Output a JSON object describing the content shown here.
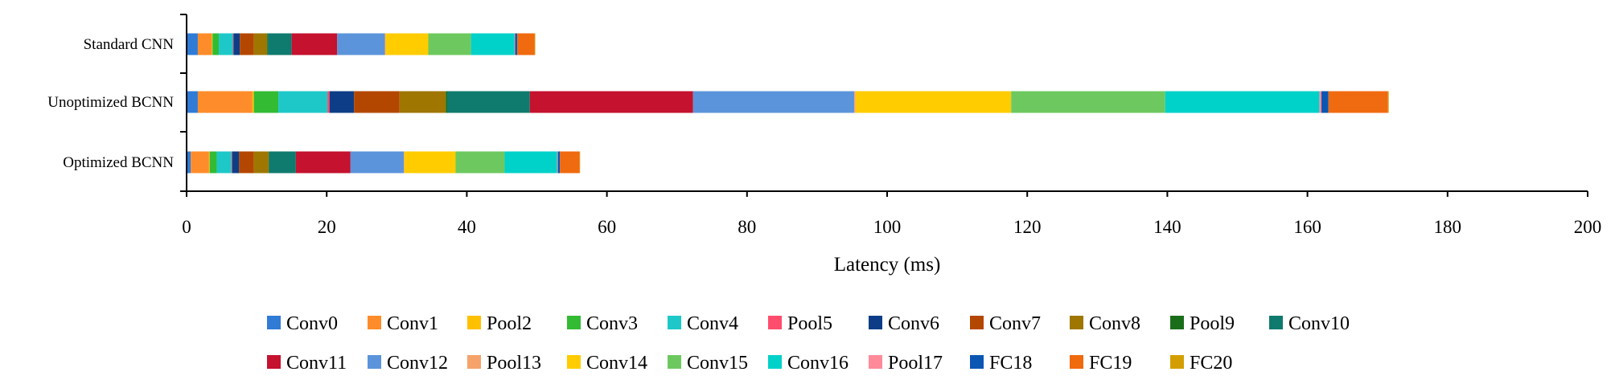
{
  "chart_data": {
    "type": "bar",
    "orientation": "horizontal",
    "stacked": true,
    "categories": [
      "Standard CNN",
      "Unoptimized BCNN",
      "Optimized BCNN"
    ],
    "xlabel": "Latency (ms)",
    "ylabel": "",
    "xlim": [
      0,
      200
    ],
    "xticks": [
      0,
      20,
      40,
      60,
      80,
      100,
      120,
      140,
      160,
      180,
      200
    ],
    "grid": false,
    "legend_position": "bottom",
    "series": [
      {
        "name": "Conv0",
        "color": "#2f7bd6",
        "values": [
          1.6,
          1.6,
          0.6
        ]
      },
      {
        "name": "Conv1",
        "color": "#ff8c2a",
        "values": [
          2.0,
          7.8,
          2.6
        ]
      },
      {
        "name": "Pool2",
        "color": "#ffc000",
        "values": [
          0.1,
          0.2,
          0.1
        ]
      },
      {
        "name": "Conv3",
        "color": "#33bb33",
        "values": [
          0.9,
          3.5,
          1.0
        ]
      },
      {
        "name": "Conv4",
        "color": "#1ec8c8",
        "values": [
          2.0,
          7.0,
          2.1
        ]
      },
      {
        "name": "Pool5",
        "color": "#ff4d6d",
        "values": [
          0.1,
          0.3,
          0.1
        ]
      },
      {
        "name": "Conv6",
        "color": "#0d3d87",
        "values": [
          0.9,
          3.5,
          1.0
        ]
      },
      {
        "name": "Conv7",
        "color": "#b34700",
        "values": [
          2.0,
          6.5,
          2.1
        ]
      },
      {
        "name": "Conv8",
        "color": "#9e7600",
        "values": [
          1.9,
          6.6,
          2.1
        ]
      },
      {
        "name": "Pool9",
        "color": "#1a6e1a",
        "values": [
          0.1,
          0.2,
          0.1
        ]
      },
      {
        "name": "Conv10",
        "color": "#0f7a6e",
        "values": [
          3.4,
          11.8,
          3.8
        ]
      },
      {
        "name": "Conv11",
        "color": "#c4122f",
        "values": [
          6.5,
          23.3,
          7.8
        ]
      },
      {
        "name": "Conv12",
        "color": "#5b94db",
        "values": [
          6.8,
          23.0,
          7.6
        ]
      },
      {
        "name": "Pool13",
        "color": "#f5a36b",
        "values": [
          0.1,
          0.2,
          0.1
        ]
      },
      {
        "name": "Conv14",
        "color": "#ffcc00",
        "values": [
          6.1,
          22.2,
          7.3
        ]
      },
      {
        "name": "Conv15",
        "color": "#6dc95f",
        "values": [
          6.1,
          22.0,
          7.0
        ]
      },
      {
        "name": "Conv16",
        "color": "#00d1c9",
        "values": [
          6.2,
          22.0,
          7.5
        ]
      },
      {
        "name": "Pool17",
        "color": "#ff8a9a",
        "values": [
          0.1,
          0.3,
          0.1
        ]
      },
      {
        "name": "FC18",
        "color": "#0b56b3",
        "values": [
          0.3,
          1.0,
          0.3
        ]
      },
      {
        "name": "FC19",
        "color": "#f06a0f",
        "values": [
          2.5,
          8.5,
          2.8
        ]
      },
      {
        "name": "FC20",
        "color": "#d39f00",
        "values": [
          0.05,
          0.1,
          0.05
        ]
      }
    ]
  }
}
